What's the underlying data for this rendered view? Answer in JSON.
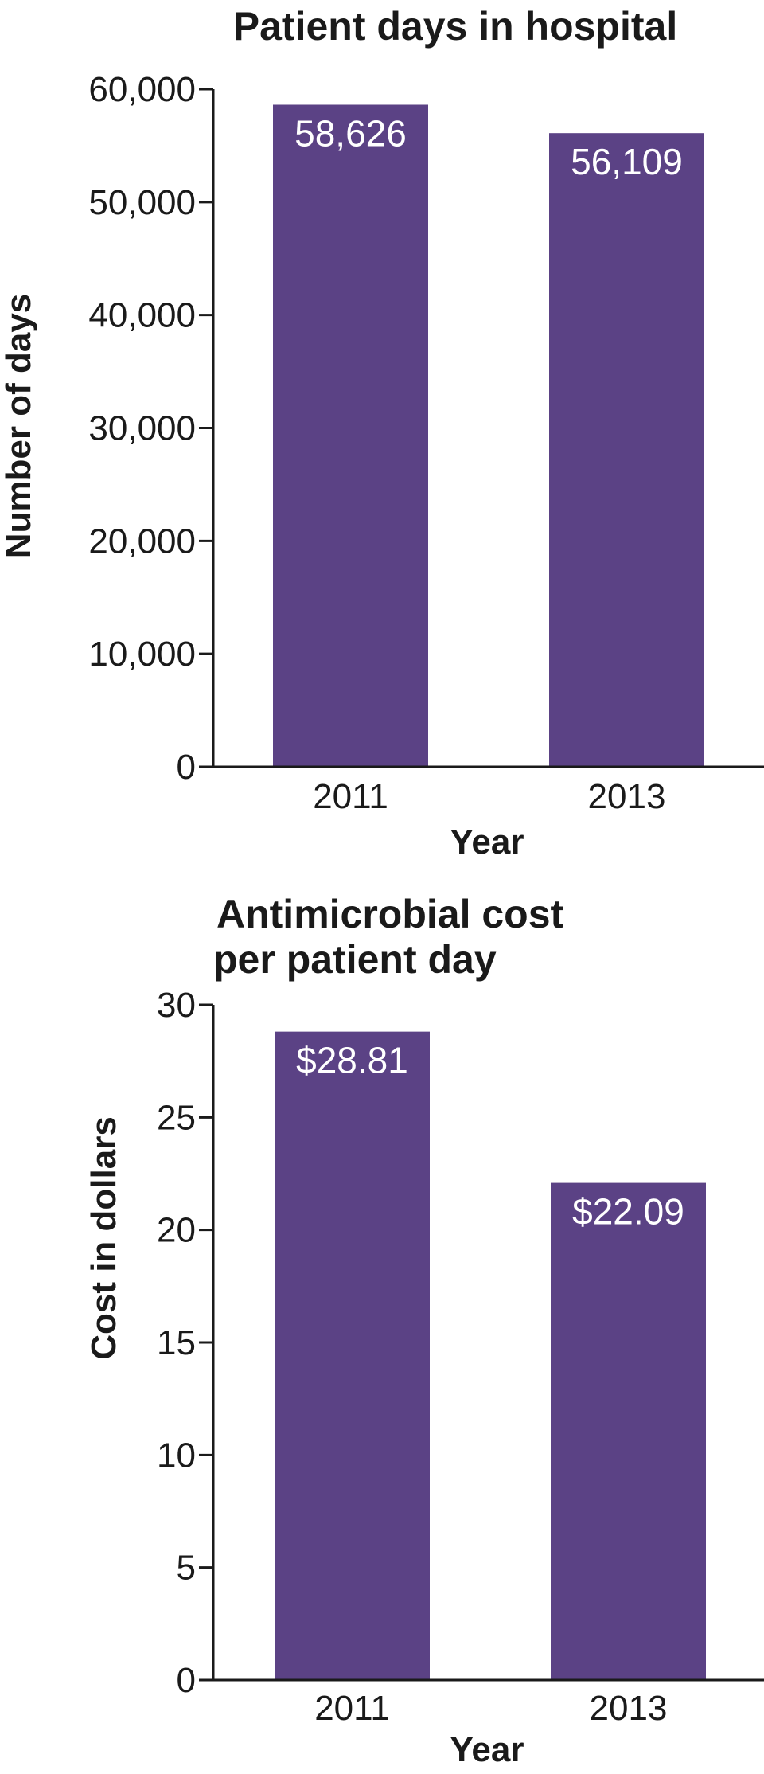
{
  "bar_color": "#5b4285",
  "chart_data": [
    {
      "type": "bar",
      "title_lines": [
        "Patient days in hospital"
      ],
      "categories": [
        "2011",
        "2013"
      ],
      "values": [
        58626,
        56109
      ],
      "value_labels": [
        "58,626",
        "56,109"
      ],
      "ylim": [
        0,
        60000
      ],
      "yticks": [
        0,
        10000,
        20000,
        30000,
        40000,
        50000,
        60000
      ],
      "ytick_labels": [
        "0",
        "10,000",
        "20,000",
        "30,000",
        "40,000",
        "50,000",
        "60,000"
      ],
      "xlabel": "Year",
      "ylabel": "Number of days",
      "grid": false,
      "legend": "none"
    },
    {
      "type": "bar",
      "title_lines": [
        "Antimicrobial cost",
        "per patient day"
      ],
      "categories": [
        "2011",
        "2013"
      ],
      "values": [
        28.81,
        22.09
      ],
      "value_labels": [
        "$28.81",
        "$22.09"
      ],
      "ylim": [
        0,
        30
      ],
      "yticks": [
        0,
        5,
        10,
        15,
        20,
        25,
        30
      ],
      "ytick_labels": [
        "0",
        "5",
        "10",
        "15",
        "20",
        "25",
        "30"
      ],
      "xlabel": "Year",
      "ylabel": "Cost in dollars",
      "grid": false,
      "legend": "none"
    }
  ]
}
